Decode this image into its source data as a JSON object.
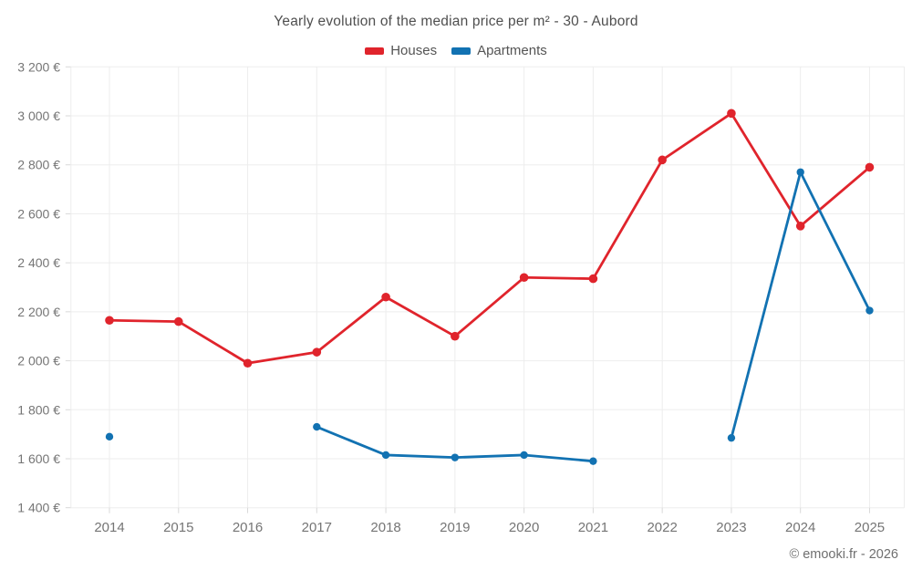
{
  "title": "Yearly evolution of the median price per m² - 30 - Aubord",
  "watermark": "© emooki.fr - 2026",
  "colors": {
    "houses": "#e0242c",
    "apartments": "#1272b2",
    "grid": "#ededed",
    "tick": "#d9d9d9",
    "axis_text": "#757575",
    "title_text": "#4f4f4f"
  },
  "chart_data": {
    "type": "line",
    "title": "Yearly evolution of the median price per m² - 30 - Aubord",
    "x": [
      2014,
      2015,
      2016,
      2017,
      2018,
      2019,
      2020,
      2021,
      2022,
      2023,
      2024,
      2025
    ],
    "xtick_labels": [
      "2014",
      "2015",
      "2016",
      "2017",
      "2018",
      "2019",
      "2020",
      "2021",
      "2022",
      "2023",
      "2024",
      "2025"
    ],
    "series": [
      {
        "name": "Houses",
        "color": "#e0242c",
        "marker_radius": 4.8,
        "values": [
          2165,
          2160,
          1990,
          2035,
          2260,
          2100,
          2340,
          2335,
          2820,
          3010,
          2550,
          2790
        ]
      },
      {
        "name": "Apartments",
        "color": "#1272b2",
        "marker_radius": 4.2,
        "values": [
          1690,
          null,
          null,
          1730,
          1615,
          1605,
          1615,
          1590,
          null,
          1685,
          2770,
          2205
        ]
      }
    ],
    "ylim": [
      1400,
      3200
    ],
    "ytick_step": 200,
    "ytick_labels": [
      "1 400 €",
      "1 600 €",
      "1 800 €",
      "2 000 €",
      "2 200 €",
      "2 400 €",
      "2 600 €",
      "2 800 €",
      "3 000 €",
      "3 200 €"
    ],
    "unit": "€",
    "grid": true,
    "legend_position": "top"
  }
}
